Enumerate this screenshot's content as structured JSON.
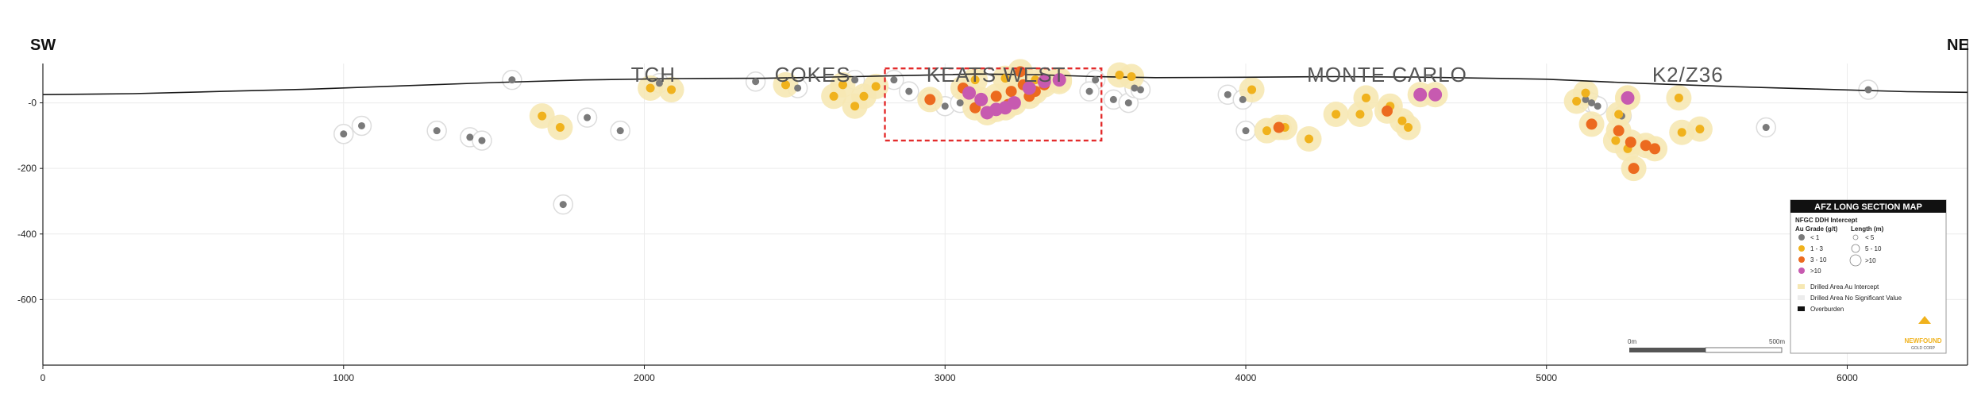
{
  "chart_data": {
    "type": "scatter",
    "direction_labels": {
      "left": "SW",
      "right": "NE"
    },
    "x_ticks": [
      0,
      1000,
      2000,
      3000,
      4000,
      5000,
      6000
    ],
    "y_ticks": [
      0,
      -200,
      -400,
      -600
    ],
    "y_tick_labels": [
      "-0",
      "-200",
      "-400",
      "-600"
    ],
    "xlim": [
      0,
      6400
    ],
    "ylim": [
      -800,
      120
    ],
    "grid": true,
    "zones": [
      {
        "name": "TCH",
        "x": 2030
      },
      {
        "name": "COKES",
        "x": 2560
      },
      {
        "name": "KEATS WEST",
        "x": 3170
      },
      {
        "name": "MONTE CARLO",
        "x": 4470
      },
      {
        "name": "K2/Z36",
        "x": 5470
      }
    ],
    "highlight_box": {
      "x": [
        2800,
        3520
      ],
      "y": [
        -115,
        105
      ],
      "color": "#e32b2b"
    },
    "topography": [
      [
        0,
        25
      ],
      [
        300,
        28
      ],
      [
        600,
        35
      ],
      [
        900,
        42
      ],
      [
        1200,
        52
      ],
      [
        1500,
        62
      ],
      [
        1800,
        70
      ],
      [
        2100,
        74
      ],
      [
        2400,
        75
      ],
      [
        2700,
        80
      ],
      [
        2900,
        84
      ],
      [
        3100,
        88
      ],
      [
        3300,
        86
      ],
      [
        3500,
        80
      ],
      [
        3700,
        77
      ],
      [
        4000,
        78
      ],
      [
        4300,
        80
      ],
      [
        4600,
        78
      ],
      [
        5000,
        72
      ],
      [
        5300,
        60
      ],
      [
        5600,
        50
      ],
      [
        5900,
        42
      ],
      [
        6200,
        34
      ],
      [
        6400,
        32
      ]
    ],
    "grade_colors": {
      "lt1": "#7a7a7a",
      "1to3": "#f0b21d",
      "3to10": "#ec6a1f",
      "gt10": "#c75ab0",
      "halo": "#f6e8b4"
    },
    "series": [
      {
        "grade": "lt1",
        "points": [
          [
            1000,
            -95
          ],
          [
            1060,
            -70
          ],
          [
            1310,
            -85
          ],
          [
            1420,
            -105
          ],
          [
            1460,
            -115
          ],
          [
            1560,
            70
          ],
          [
            1810,
            -45
          ],
          [
            1920,
            -85
          ],
          [
            1730,
            -310
          ],
          [
            2050,
            60
          ],
          [
            2370,
            65
          ],
          [
            2510,
            45
          ],
          [
            2700,
            70
          ],
          [
            2830,
            70
          ],
          [
            2880,
            35
          ],
          [
            2950,
            10
          ],
          [
            3000,
            -10
          ],
          [
            3050,
            0
          ],
          [
            3500,
            70
          ],
          [
            3480,
            35
          ],
          [
            3560,
            10
          ],
          [
            3610,
            0
          ],
          [
            3630,
            45
          ],
          [
            3650,
            40
          ],
          [
            3940,
            25
          ],
          [
            3990,
            10
          ],
          [
            4000,
            -85
          ],
          [
            5130,
            10
          ],
          [
            5150,
            0
          ],
          [
            5170,
            -10
          ],
          [
            5250,
            -40
          ],
          [
            5730,
            -75
          ],
          [
            6070,
            40
          ]
        ]
      },
      {
        "grade": "1to3",
        "points": [
          [
            1660,
            -40
          ],
          [
            1720,
            -75
          ],
          [
            2020,
            45
          ],
          [
            2090,
            40
          ],
          [
            2470,
            55
          ],
          [
            2630,
            20
          ],
          [
            2660,
            55
          ],
          [
            2730,
            20
          ],
          [
            2700,
            -10
          ],
          [
            2770,
            50
          ],
          [
            3100,
            70
          ],
          [
            3200,
            75
          ],
          [
            3300,
            70
          ],
          [
            3380,
            65
          ],
          [
            3580,
            85
          ],
          [
            3620,
            80
          ],
          [
            4020,
            40
          ],
          [
            4070,
            -85
          ],
          [
            4130,
            -75
          ],
          [
            4210,
            -110
          ],
          [
            4300,
            -35
          ],
          [
            4380,
            -35
          ],
          [
            4400,
            15
          ],
          [
            4480,
            -10
          ],
          [
            4520,
            -55
          ],
          [
            4540,
            -75
          ],
          [
            5100,
            5
          ],
          [
            5130,
            30
          ],
          [
            5240,
            -35
          ],
          [
            5270,
            15
          ],
          [
            5230,
            -115
          ],
          [
            5270,
            -140
          ],
          [
            5440,
            15
          ],
          [
            5450,
            -90
          ],
          [
            5510,
            -80
          ]
        ]
      },
      {
        "grade": "3to10",
        "points": [
          [
            2950,
            10
          ],
          [
            3060,
            45
          ],
          [
            3170,
            20
          ],
          [
            3220,
            35
          ],
          [
            3250,
            95
          ],
          [
            3260,
            55
          ],
          [
            3280,
            20
          ],
          [
            3300,
            35
          ],
          [
            3330,
            55
          ],
          [
            3100,
            -15
          ],
          [
            3210,
            -5
          ],
          [
            4110,
            -75
          ],
          [
            4470,
            -25
          ],
          [
            5150,
            -65
          ],
          [
            5240,
            -85
          ],
          [
            5280,
            -120
          ],
          [
            5290,
            -200
          ],
          [
            5330,
            -130
          ],
          [
            5360,
            -140
          ]
        ]
      },
      {
        "grade": "gt10",
        "points": [
          [
            3080,
            30
          ],
          [
            3120,
            10
          ],
          [
            3140,
            -30
          ],
          [
            3170,
            -20
          ],
          [
            3200,
            -15
          ],
          [
            3230,
            0
          ],
          [
            3280,
            45
          ],
          [
            3330,
            65
          ],
          [
            3380,
            70
          ],
          [
            4580,
            25
          ],
          [
            4630,
            25
          ],
          [
            5270,
            15
          ]
        ]
      }
    ],
    "legend": {
      "title": "AFZ LONG SECTION MAP",
      "subtitle": "NFGC DDH Intercept",
      "grade_header": "Au Grade (g/t)",
      "length_header": "Length (m)",
      "grade_items": [
        "< 1",
        "1 - 3",
        "3 - 10",
        ">10"
      ],
      "length_items": [
        "< 5",
        "5 - 10",
        ">10"
      ],
      "area_items": [
        "Drilled Area Au Intercept",
        "Drilled Area No Significant Value",
        "Overburden"
      ],
      "placement": "bottom-right"
    },
    "scale_bar": {
      "start_label": "0m",
      "end_label": "500m"
    },
    "logo": {
      "line1": "NEWFOUND",
      "line2": "GOLD CORP"
    }
  }
}
